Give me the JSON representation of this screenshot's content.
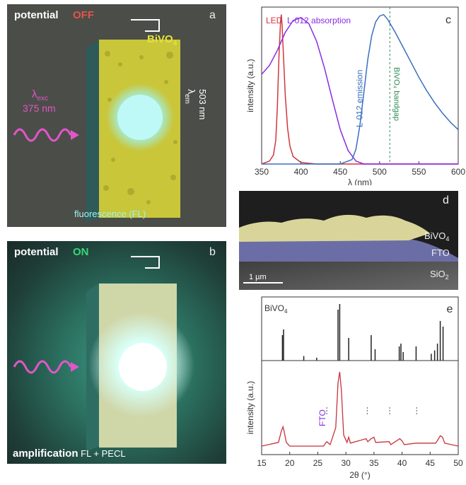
{
  "panel_a": {
    "label": "a",
    "title_potential": "potential",
    "title_state": "OFF",
    "material_base": "BiVO",
    "material_sub": "4",
    "exc_symbol": "λ",
    "exc_sub": "exc",
    "exc_value": "375 nm",
    "em_symbol": "λ",
    "em_sub": "em",
    "em_value": "503 nm",
    "caption": "fluorescence (FL)"
  },
  "panel_b": {
    "label": "b",
    "title_potential": "potential",
    "title_state": "ON",
    "caption_bold": "amplification",
    "caption_rest": " FL + PECL"
  },
  "panel_c": {
    "label": "c",
    "legend_led": "LED",
    "legend_abs": "L-012 absorption",
    "emission_label": "L-012 emission",
    "bandgap_label": "BiVO₄ bandgap"
  },
  "panel_d": {
    "label": "d",
    "layer_top_base": "BiVO",
    "layer_top_sub": "4",
    "layer_mid": "FTO",
    "layer_bottom_base": "SiO",
    "layer_bottom_sub": "2",
    "scalebar": "1 µm"
  },
  "panel_e": {
    "label": "e",
    "ref_label_base": "BiVO",
    "ref_label_sub": "4",
    "fto_label": "FTO"
  },
  "colors": {
    "led": "#d0363c",
    "absorption": "#8a2be2",
    "emission": "#3a6fc0",
    "bandgap": "#2e8b57",
    "xrd": "#c8323a",
    "bivo4": "#d8d83a",
    "off_red": "#e0554b",
    "on_green": "#39d67a",
    "pink": "#e256c8"
  },
  "chart_data": [
    {
      "type": "line",
      "panel": "c",
      "xlabel": "λ (nm)",
      "ylabel": "intensity (a.u.)",
      "xlim": [
        350,
        600
      ],
      "xticks": [
        350,
        400,
        450,
        500,
        550,
        600
      ],
      "ylim": [
        0,
        1.05
      ],
      "series": [
        {
          "name": "LED",
          "color": "#d0363c",
          "x": [
            350,
            360,
            365,
            368,
            370,
            372,
            374,
            375,
            376,
            378,
            380,
            383,
            386,
            390,
            400,
            420,
            600
          ],
          "y": [
            0.0,
            0.02,
            0.06,
            0.16,
            0.38,
            0.72,
            0.95,
            1.0,
            0.93,
            0.7,
            0.46,
            0.24,
            0.12,
            0.05,
            0.01,
            0.0,
            0.0
          ]
        },
        {
          "name": "L-012 absorption",
          "color": "#8a2be2",
          "x": [
            350,
            360,
            370,
            380,
            390,
            400,
            410,
            420,
            430,
            440,
            450,
            460,
            470,
            480,
            600
          ],
          "y": [
            0.6,
            0.66,
            0.76,
            0.88,
            0.96,
            0.98,
            0.94,
            0.82,
            0.64,
            0.43,
            0.23,
            0.09,
            0.02,
            0.0,
            0.0
          ]
        },
        {
          "name": "L-012 emission",
          "color": "#3a6fc0",
          "x": [
            350,
            450,
            465,
            470,
            475,
            480,
            485,
            490,
            495,
            500,
            505,
            510,
            520,
            530,
            540,
            550,
            560,
            570,
            580,
            590,
            600
          ],
          "y": [
            0.0,
            0.0,
            0.03,
            0.1,
            0.26,
            0.48,
            0.7,
            0.86,
            0.95,
            0.99,
            1.0,
            0.97,
            0.88,
            0.78,
            0.68,
            0.58,
            0.49,
            0.41,
            0.34,
            0.28,
            0.23
          ]
        }
      ],
      "vline": 513
    },
    {
      "type": "line",
      "panel": "e",
      "xlabel": "2θ (°)",
      "ylabel": "intensity (a.u.)",
      "xlim": [
        15,
        50
      ],
      "xticks": [
        15,
        20,
        25,
        30,
        35,
        40,
        45,
        50
      ],
      "reference_sticks": [
        [
          18.7,
          0.45
        ],
        [
          18.9,
          0.55
        ],
        [
          22.5,
          0.08
        ],
        [
          24.8,
          0.05
        ],
        [
          28.6,
          0.9
        ],
        [
          28.9,
          1.0
        ],
        [
          30.5,
          0.4
        ],
        [
          34.5,
          0.45
        ],
        [
          35.2,
          0.2
        ],
        [
          39.5,
          0.25
        ],
        [
          39.8,
          0.3
        ],
        [
          40.2,
          0.15
        ],
        [
          42.5,
          0.25
        ],
        [
          45.2,
          0.12
        ],
        [
          45.8,
          0.18
        ],
        [
          46.3,
          0.3
        ],
        [
          46.8,
          0.7
        ],
        [
          47.3,
          0.6
        ]
      ],
      "fto_marks": [
        26.6,
        33.8,
        37.8,
        42.6
      ],
      "measured": {
        "x": [
          15,
          18.0,
          18.5,
          18.8,
          19.0,
          19.4,
          20,
          26,
          26.6,
          27.2,
          28.2,
          28.6,
          28.9,
          29.2,
          29.6,
          30.2,
          30.5,
          30.8,
          33.6,
          33.9,
          34.5,
          35.0,
          35.3,
          37.7,
          38.0,
          39.6,
          40.0,
          40.4,
          42.5,
          46.0,
          46.5,
          46.8,
          47.2,
          47.6,
          50
        ],
        "y": [
          0.0,
          0.05,
          0.2,
          0.26,
          0.2,
          0.05,
          0.0,
          0.0,
          0.06,
          0.02,
          0.25,
          0.85,
          1.0,
          0.75,
          0.15,
          0.05,
          0.12,
          0.04,
          0.1,
          0.06,
          0.1,
          0.12,
          0.05,
          0.06,
          0.02,
          0.1,
          0.07,
          0.02,
          0.04,
          0.04,
          0.1,
          0.14,
          0.12,
          0.04,
          0.0
        ]
      }
    }
  ]
}
